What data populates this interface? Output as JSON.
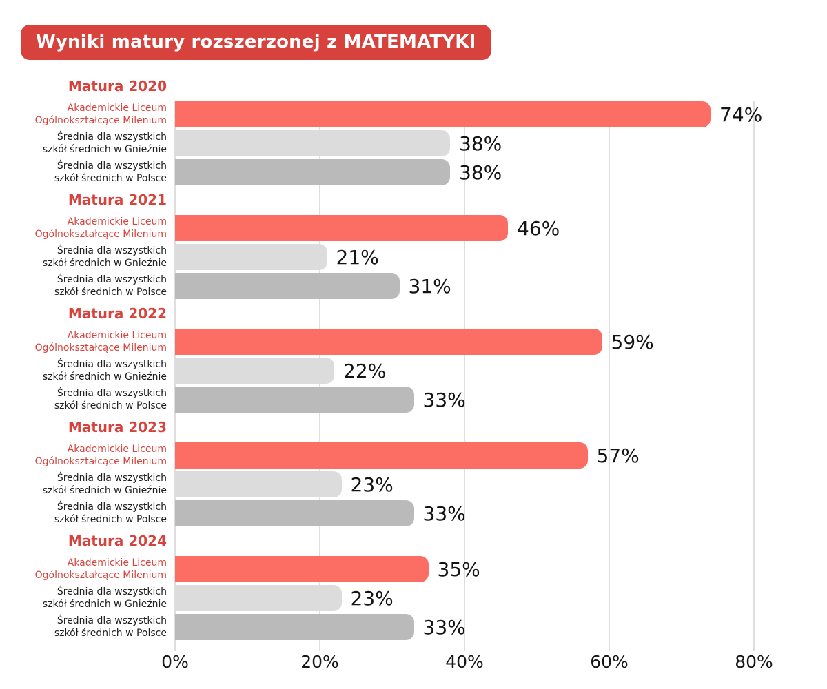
{
  "title": "Wyniki matury rozszerzonej z MATEMATYKI",
  "accent_color": "#d7423c",
  "chart_data": {
    "type": "bar",
    "orientation": "horizontal",
    "title": "Wyniki matury rozszerzonej z MATEMATYKI",
    "categories": [
      "Matura 2020",
      "Matura 2021",
      "Matura 2022",
      "Matura 2023",
      "Matura 2024"
    ],
    "series": [
      {
        "name": "Akademickie Liceum Ogólnokształcące Milenium",
        "label_lines": [
          "Akademickie Liceum",
          "Ogólnokształcące Milenium"
        ],
        "color": "#fc6d63",
        "values": [
          74,
          46,
          59,
          57,
          35
        ]
      },
      {
        "name": "Średnia dla wszystkich szkół średnich w Gnieźnie",
        "label_lines": [
          "Średnia dla wszystkich",
          "szkół średnich w Gnieźnie"
        ],
        "color": "#dcdcdc",
        "values": [
          38,
          21,
          22,
          23,
          23
        ]
      },
      {
        "name": "Średnia dla wszystkich szkół średnich w Polsce",
        "label_lines": [
          "Średnia dla wszystkich",
          "szkół średnich w Polsce"
        ],
        "color": "#bababa",
        "values": [
          38,
          31,
          33,
          33,
          33
        ]
      }
    ],
    "value_suffix": "%",
    "x_ticks": [
      "0%",
      "20%",
      "40%",
      "60%",
      "80%"
    ],
    "xlim": [
      0,
      80
    ],
    "grid": true,
    "legend": false
  }
}
